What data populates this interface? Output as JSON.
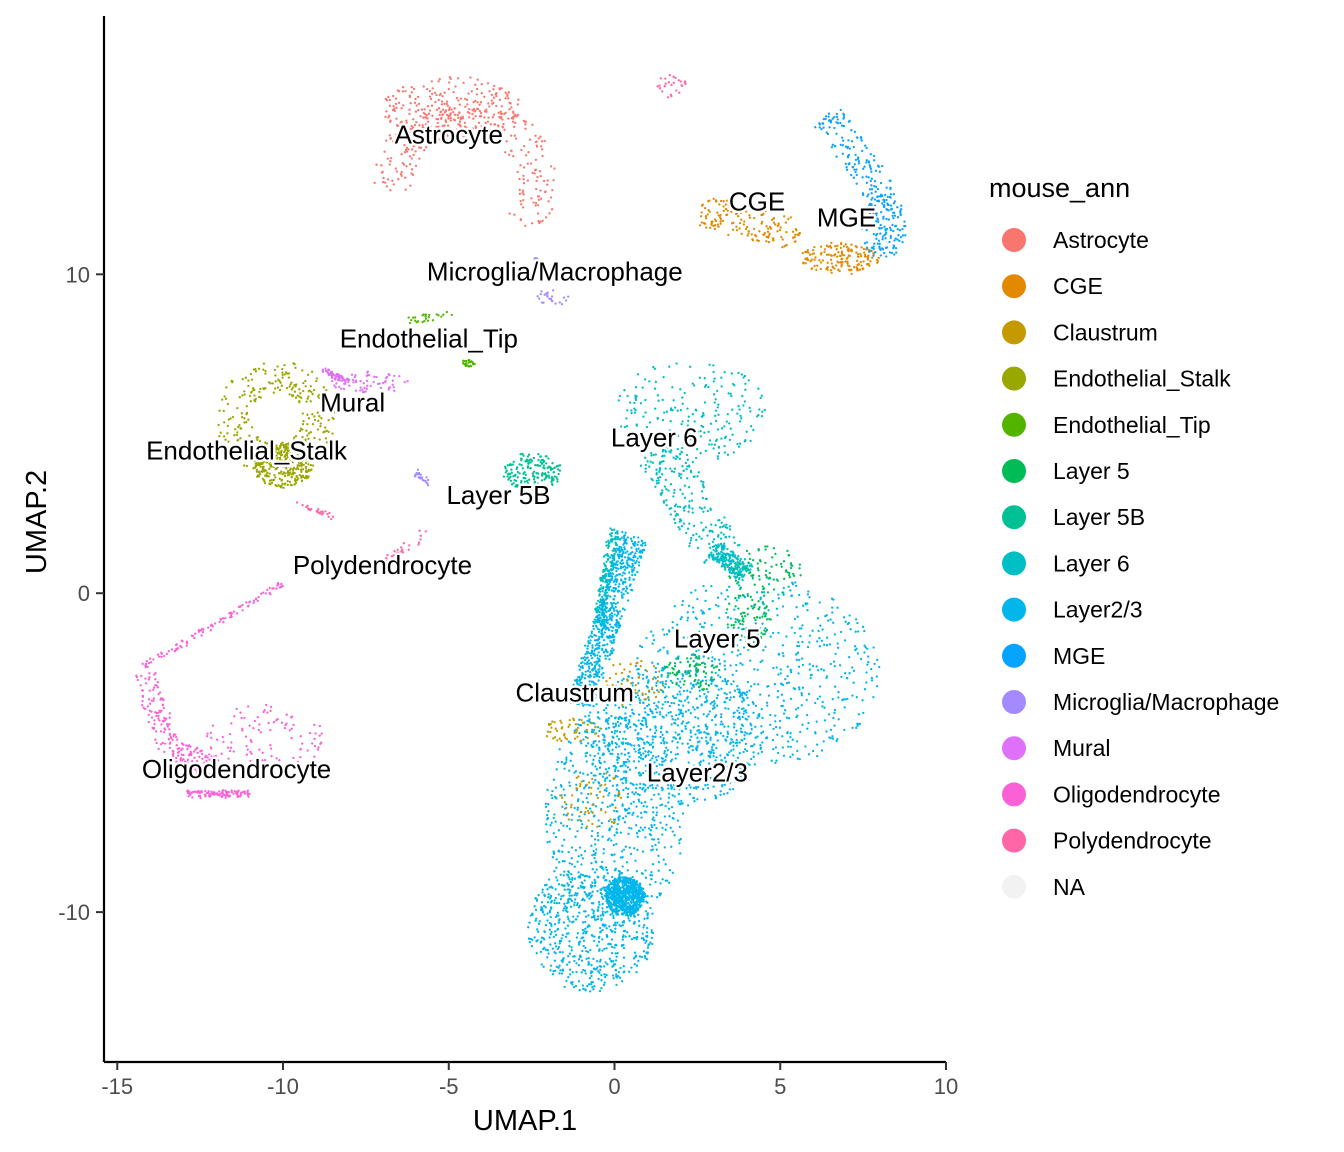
{
  "chart_data": {
    "type": "scatter",
    "title": "",
    "xlabel": "UMAP.1",
    "ylabel": "UMAP.2",
    "xlim": [
      -15.4,
      10.0
    ],
    "ylim": [
      -14.7,
      18.1
    ],
    "x_ticks": [
      -15,
      -10,
      -5,
      0,
      5,
      10
    ],
    "x_tick_labels": [
      "-15",
      "-10",
      "-5",
      "0",
      "5",
      "10"
    ],
    "y_ticks": [
      -10,
      0,
      10
    ],
    "y_tick_labels": [
      "-10",
      "0",
      "10"
    ],
    "grid": false,
    "legend": {
      "title": "mouse_ann",
      "placement": "right",
      "entries": [
        {
          "label": "Astrocyte",
          "color": "#F8766D"
        },
        {
          "label": "CGE",
          "color": "#E38900"
        },
        {
          "label": "Claustrum",
          "color": "#C49A00"
        },
        {
          "label": "Endothelial_Stalk",
          "color": "#99A800"
        },
        {
          "label": "Endothelial_Tip",
          "color": "#53B400"
        },
        {
          "label": "Layer 5",
          "color": "#00BC56"
        },
        {
          "label": "Layer 5B",
          "color": "#00C094"
        },
        {
          "label": "Layer 6",
          "color": "#00BFC4"
        },
        {
          "label": "Layer2/3",
          "color": "#00B6EB"
        },
        {
          "label": "MGE",
          "color": "#06A4FF"
        },
        {
          "label": "Microglia/Macrophage",
          "color": "#A58AFF"
        },
        {
          "label": "Mural",
          "color": "#DF70F8"
        },
        {
          "label": "Oligodendrocyte",
          "color": "#FB61D7"
        },
        {
          "label": "Polydendrocyte",
          "color": "#FF66A8"
        },
        {
          "label": "NA",
          "color": "#F2F2F2"
        }
      ]
    },
    "cluster_labels": [
      {
        "text": "Astrocyte",
        "x": -5.0,
        "y": 14.1
      },
      {
        "text": "CGE",
        "x": 4.3,
        "y": 12.0
      },
      {
        "text": "MGE",
        "x": 7.0,
        "y": 11.5
      },
      {
        "text": "Microglia/Macrophage",
        "x": -1.8,
        "y": 9.8
      },
      {
        "text": "Endothelial_Tip",
        "x": -5.6,
        "y": 7.7
      },
      {
        "text": "Mural",
        "x": -7.9,
        "y": 5.7
      },
      {
        "text": "Endothelial_Stalk",
        "x": -11.1,
        "y": 4.2
      },
      {
        "text": "Layer 6",
        "x": 1.2,
        "y": 4.6
      },
      {
        "text": "Layer 5B",
        "x": -3.5,
        "y": 2.8
      },
      {
        "text": "Polydendrocyte",
        "x": -7.0,
        "y": 0.6
      },
      {
        "text": "Layer 5",
        "x": 3.1,
        "y": -1.7
      },
      {
        "text": "Claustrum",
        "x": -1.2,
        "y": -3.4
      },
      {
        "text": "Layer2/3",
        "x": 2.5,
        "y": -5.9
      },
      {
        "text": "Oligodendrocyte",
        "x": -11.4,
        "y": -5.8
      }
    ],
    "clusters": [
      {
        "label": "Astrocyte",
        "n": 520,
        "parts": [
          {
            "shape": "arc",
            "cx": -4.5,
            "cy": 12.8,
            "r": 2.2,
            "thickness": 1.2,
            "from": -35,
            "to": 185
          },
          {
            "shape": "ellipse",
            "cx": -4.9,
            "cy": 15.2,
            "rx": 2.1,
            "ry": 1.0
          }
        ]
      },
      {
        "label": "CGE",
        "n": 320,
        "parts": [
          {
            "shape": "segment",
            "x1": 2.6,
            "y1": 12.0,
            "x2": 5.6,
            "y2": 11.2,
            "w": 0.5
          },
          {
            "shape": "ellipse",
            "cx": 6.8,
            "cy": 10.5,
            "rx": 1.2,
            "ry": 0.5
          }
        ]
      },
      {
        "label": "MGE",
        "n": 300,
        "parts": [
          {
            "shape": "segment",
            "x1": 6.4,
            "y1": 15.0,
            "x2": 8.2,
            "y2": 12.3,
            "w": 0.5
          },
          {
            "shape": "ellipse",
            "cx": 8.1,
            "cy": 11.5,
            "rx": 0.7,
            "ry": 1.0
          }
        ]
      },
      {
        "label": "Microglia/Macrophage",
        "n": 70,
        "parts": [
          {
            "shape": "ellipse",
            "cx": -1.8,
            "cy": 9.3,
            "rx": 0.6,
            "ry": 0.25
          },
          {
            "shape": "segment",
            "x1": -2.4,
            "y1": 10.5,
            "x2": -2.2,
            "y2": 10.2,
            "w": 0.06
          },
          {
            "shape": "segment",
            "x1": -6.0,
            "y1": 3.8,
            "x2": -5.6,
            "y2": 3.4,
            "w": 0.1
          }
        ]
      },
      {
        "label": "Endothelial_Tip",
        "n": 50,
        "parts": [
          {
            "shape": "segment",
            "x1": -6.3,
            "y1": 8.5,
            "x2": -4.9,
            "y2": 8.8,
            "w": 0.12
          },
          {
            "shape": "ellipse",
            "cx": -4.4,
            "cy": 7.2,
            "rx": 0.2,
            "ry": 0.1
          }
        ]
      },
      {
        "label": "Endothelial_Stalk",
        "n": 620,
        "parts": [
          {
            "shape": "arc",
            "cx": -10.2,
            "cy": 5.5,
            "r": 1.3,
            "thickness": 1.0,
            "from": -90,
            "to": 270
          },
          {
            "shape": "ellipse",
            "cx": -10.0,
            "cy": 4.0,
            "rx": 0.9,
            "ry": 0.7
          }
        ]
      },
      {
        "label": "Mural",
        "n": 130,
        "parts": [
          {
            "shape": "ellipse",
            "cx": -7.4,
            "cy": 6.6,
            "rx": 1.2,
            "ry": 0.35
          },
          {
            "shape": "segment",
            "x1": -8.8,
            "y1": 7.0,
            "x2": -8.0,
            "y2": 6.6,
            "w": 0.1
          }
        ]
      },
      {
        "label": "Layer 6",
        "n": 850,
        "parts": [
          {
            "shape": "ellipse",
            "cx": 2.3,
            "cy": 5.7,
            "rx": 2.3,
            "ry": 1.6
          },
          {
            "shape": "segment",
            "x1": 1.3,
            "y1": 4.5,
            "x2": 3.2,
            "y2": 1.2,
            "w": 0.7
          },
          {
            "shape": "segment",
            "x1": 3.0,
            "y1": 1.4,
            "x2": 4.0,
            "y2": 0.6,
            "w": 0.3
          },
          {
            "shape": "segment",
            "x1": -0.5,
            "y1": -1.0,
            "x2": 0.0,
            "y2": 2.0,
            "w": 0.15
          }
        ]
      },
      {
        "label": "Layer 5B",
        "n": 180,
        "parts": [
          {
            "shape": "ellipse",
            "cx": -2.5,
            "cy": 3.8,
            "rx": 0.9,
            "ry": 0.6
          }
        ]
      },
      {
        "label": "Polydendrocyte",
        "n": 80,
        "parts": [
          {
            "shape": "segment",
            "x1": -6.9,
            "y1": 1.0,
            "x2": -5.7,
            "y2": 1.9,
            "w": 0.15
          },
          {
            "shape": "ellipse",
            "cx": 1.7,
            "cy": 15.9,
            "rx": 0.5,
            "ry": 0.35
          },
          {
            "shape": "segment",
            "x1": -9.6,
            "y1": 2.8,
            "x2": -8.5,
            "y2": 2.4,
            "w": 0.08
          }
        ]
      },
      {
        "label": "Oligodendrocyte",
        "n": 520,
        "parts": [
          {
            "shape": "segment",
            "x1": -14.2,
            "y1": -2.3,
            "x2": -10.0,
            "y2": 0.3,
            "w": 0.09
          },
          {
            "shape": "segment",
            "x1": -14.2,
            "y1": -2.5,
            "x2": -13.4,
            "y2": -5.0,
            "w": 0.35
          },
          {
            "shape": "ellipse",
            "cx": -10.6,
            "cy": -4.6,
            "rx": 1.9,
            "ry": 1.1
          },
          {
            "shape": "segment",
            "x1": -12.9,
            "y1": -6.3,
            "x2": -11.0,
            "y2": -6.3,
            "w": 0.1
          },
          {
            "shape": "segment",
            "x1": -13.3,
            "y1": -5.0,
            "x2": -12.0,
            "y2": -5.5,
            "w": 0.4
          }
        ]
      },
      {
        "label": "Layer2/3",
        "n": 3800,
        "parts": [
          {
            "shape": "ellipse",
            "cx": 4.3,
            "cy": -2.5,
            "rx": 3.7,
            "ry": 3.0
          },
          {
            "shape": "ellipse",
            "cx": 1.8,
            "cy": -4.5,
            "rx": 2.8,
            "ry": 2.2
          },
          {
            "shape": "ellipse",
            "cx": 0.0,
            "cy": -7.0,
            "rx": 2.1,
            "ry": 3.5
          },
          {
            "shape": "ellipse",
            "cx": -0.7,
            "cy": -10.5,
            "rx": 1.9,
            "ry": 2.0
          },
          {
            "shape": "ellipse",
            "cx": 0.3,
            "cy": -9.5,
            "rx": 0.6,
            "ry": 0.6
          },
          {
            "shape": "segment",
            "x1": -1.0,
            "y1": -3.5,
            "x2": 0.6,
            "y2": 1.8,
            "w": 0.4
          }
        ]
      },
      {
        "label": "Layer 5",
        "n": 240,
        "parts": [
          {
            "shape": "ellipse",
            "cx": 4.5,
            "cy": 0.7,
            "rx": 1.2,
            "ry": 0.8
          },
          {
            "shape": "ellipse",
            "cx": 4.0,
            "cy": -0.8,
            "rx": 0.7,
            "ry": 0.8
          },
          {
            "shape": "ellipse",
            "cx": 2.4,
            "cy": -2.5,
            "rx": 0.9,
            "ry": 0.6
          }
        ]
      },
      {
        "label": "Claustrum",
        "n": 150,
        "parts": [
          {
            "shape": "ellipse",
            "cx": -1.3,
            "cy": -4.3,
            "rx": 0.9,
            "ry": 0.4
          },
          {
            "shape": "ellipse",
            "cx": 0.6,
            "cy": -2.8,
            "rx": 0.9,
            "ry": 0.8
          },
          {
            "shape": "ellipse",
            "cx": -0.7,
            "cy": -6.5,
            "rx": 1.0,
            "ry": 1.0
          }
        ]
      }
    ]
  }
}
